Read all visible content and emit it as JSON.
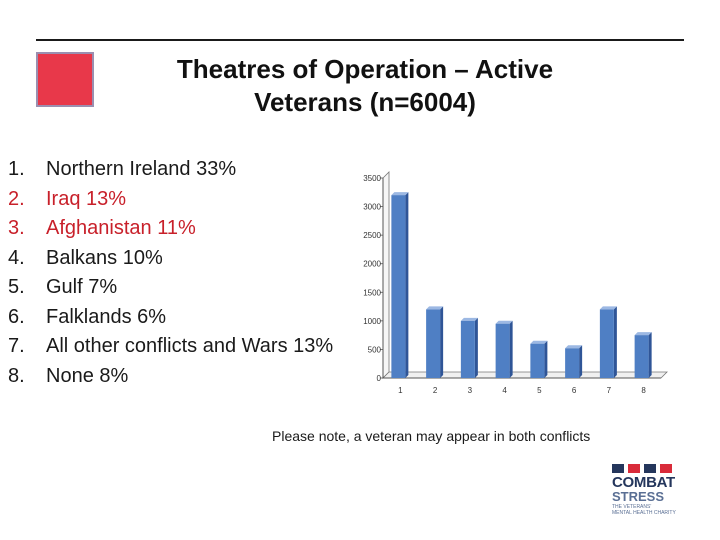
{
  "slide": {
    "title_line1": "Theatres of Operation – Active",
    "title_line2": "Veterans (n=6004)",
    "note": "Please note, a veteran may appear in both conflicts"
  },
  "conflicts": [
    {
      "num": "1.",
      "label": "Northern Ireland 33%",
      "color": "#1a1a1a"
    },
    {
      "num": "2.",
      "label": "Iraq  13%",
      "color": "#c8202a"
    },
    {
      "num": "3.",
      "label": "Afghanistan 11%",
      "color": "#c8202a"
    },
    {
      "num": "4.",
      "label": "Balkans 10%",
      "color": "#1a1a1a"
    },
    {
      "num": "5.",
      "label": "Gulf  7%",
      "color": "#1a1a1a"
    },
    {
      "num": "6.",
      "label": "Falklands  6%",
      "color": "#1a1a1a"
    },
    {
      "num": "7.",
      "label": "All other conflicts and Wars  13%",
      "color": "#1a1a1a"
    },
    {
      "num": "8.",
      "label": "None  8%",
      "color": "#1a1a1a"
    }
  ],
  "chart_data": {
    "type": "bar",
    "categories": [
      "1",
      "2",
      "3",
      "4",
      "5",
      "6",
      "7",
      "8"
    ],
    "values": [
      3200,
      1200,
      1000,
      950,
      600,
      520,
      1200,
      750
    ],
    "yticks": [
      0,
      500,
      1000,
      1500,
      2000,
      2500,
      3000,
      3500
    ],
    "ylim": [
      0,
      3500
    ],
    "title": "",
    "xlabel": "",
    "ylabel": "",
    "bar_color": "#4f7fc4"
  },
  "logo": {
    "word1": "COMBAT",
    "word2": "STRESS",
    "tagline_line1": "THE VETERANS'",
    "tagline_line2": "MENTAL HEALTH CHARITY",
    "bar_colors": [
      "#24365c",
      "#d92b3a",
      "#24365c",
      "#d92b3a"
    ]
  }
}
